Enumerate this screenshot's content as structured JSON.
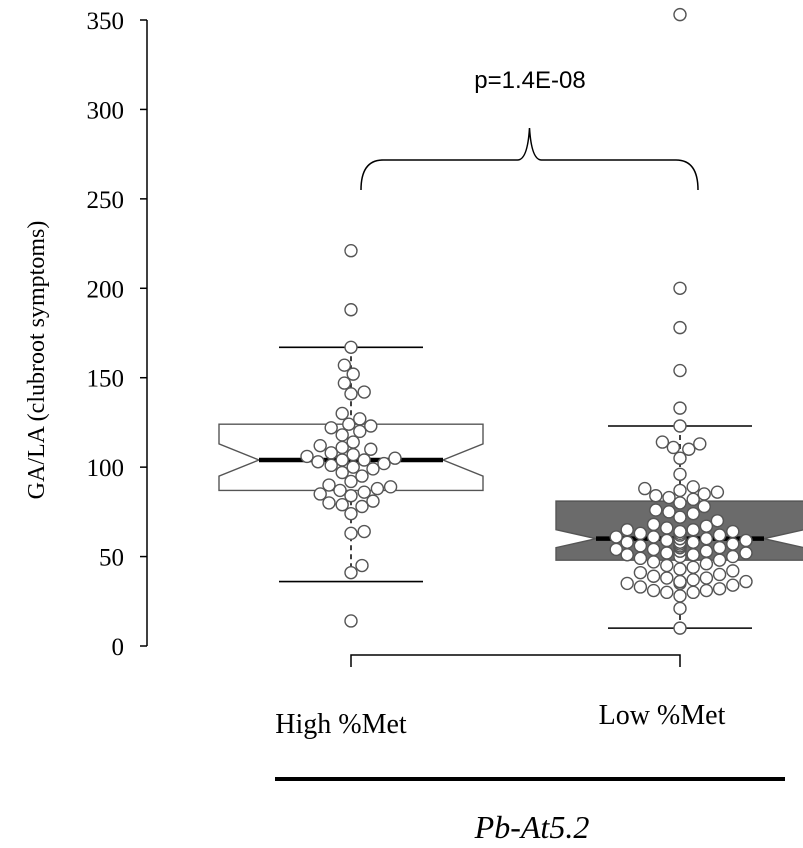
{
  "chart_data": {
    "type": "boxplot",
    "ylabel": "GA/LA (clubroot symptoms)",
    "ylim": [
      0,
      350
    ],
    "yticks": [
      0,
      50,
      100,
      150,
      200,
      250,
      300,
      350
    ],
    "categories": [
      "High %Met",
      "Low %Met"
    ],
    "group_label": "Pb-At5.2",
    "annotation": "p=1.4E-08",
    "boxes": [
      {
        "name": "High %Met",
        "fill": "#ffffff",
        "whisker_low": 36,
        "q1": 87,
        "median": 104,
        "q3": 124,
        "whisker_high": 167,
        "notch_low": 95,
        "notch_high": 113,
        "points": [
          14,
          41,
          45,
          63,
          64,
          74,
          78,
          79,
          80,
          81,
          84,
          85,
          86,
          87,
          88,
          89,
          90,
          92,
          95,
          97,
          99,
          100,
          101,
          102,
          103,
          104,
          104,
          105,
          106,
          107,
          108,
          110,
          111,
          112,
          114,
          118,
          120,
          122,
          123,
          124,
          127,
          130,
          141,
          142,
          147,
          152,
          157,
          167,
          188,
          221
        ]
      },
      {
        "name": "Low %Met",
        "fill": "#6b6b6b",
        "whisker_low": 10,
        "q1": 48,
        "median": 60,
        "q3": 81,
        "whisker_high": 123,
        "notch_low": 55,
        "notch_high": 65,
        "points": [
          10,
          21,
          28,
          30,
          30,
          31,
          31,
          32,
          33,
          34,
          35,
          35,
          36,
          36,
          36,
          37,
          38,
          38,
          39,
          40,
          41,
          42,
          43,
          44,
          45,
          46,
          47,
          48,
          49,
          50,
          50,
          51,
          51,
          52,
          52,
          53,
          53,
          54,
          54,
          55,
          55,
          55,
          56,
          56,
          56,
          57,
          57,
          58,
          58,
          58,
          59,
          59,
          60,
          60,
          60,
          61,
          61,
          62,
          62,
          63,
          63,
          64,
          64,
          65,
          65,
          66,
          67,
          68,
          70,
          72,
          74,
          75,
          76,
          78,
          80,
          82,
          83,
          84,
          85,
          86,
          87,
          88,
          89,
          96,
          105,
          110,
          111,
          113,
          114,
          123,
          133,
          154,
          178,
          200,
          353
        ]
      }
    ]
  }
}
